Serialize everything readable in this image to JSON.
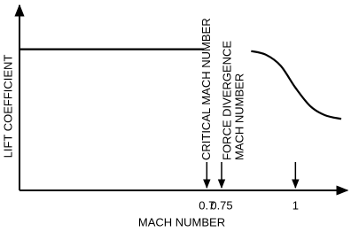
{
  "chart_data": {
    "type": "line",
    "x_label": "MACH NUMBER",
    "y_label": "LIFT COEFFICIENT",
    "x": [
      0.066,
      0.69,
      0.8,
      0.85,
      0.9,
      0.95,
      1.0,
      1.05,
      1.1,
      1.155
    ],
    "series": [
      {
        "color": "#000000",
        "values": [
          0.77,
          0.77,
          null,
          0.76,
          0.74,
          0.68,
          0.56,
          0.46,
          0.41,
          0.39
        ]
      }
    ],
    "xlim": [
      0.066,
      1.17
    ],
    "ylim": [
      0,
      1
    ],
    "xticks": [
      0.7,
      0.75,
      1.0
    ],
    "grid": false,
    "annotations": [
      {
        "x": 0.7,
        "lines": [
          "CRITICAL MACH NUMBER"
        ]
      },
      {
        "x": 0.75,
        "lines": [
          "FORCE DIVERGENCE",
          "MACH NUMBER"
        ]
      }
    ]
  }
}
